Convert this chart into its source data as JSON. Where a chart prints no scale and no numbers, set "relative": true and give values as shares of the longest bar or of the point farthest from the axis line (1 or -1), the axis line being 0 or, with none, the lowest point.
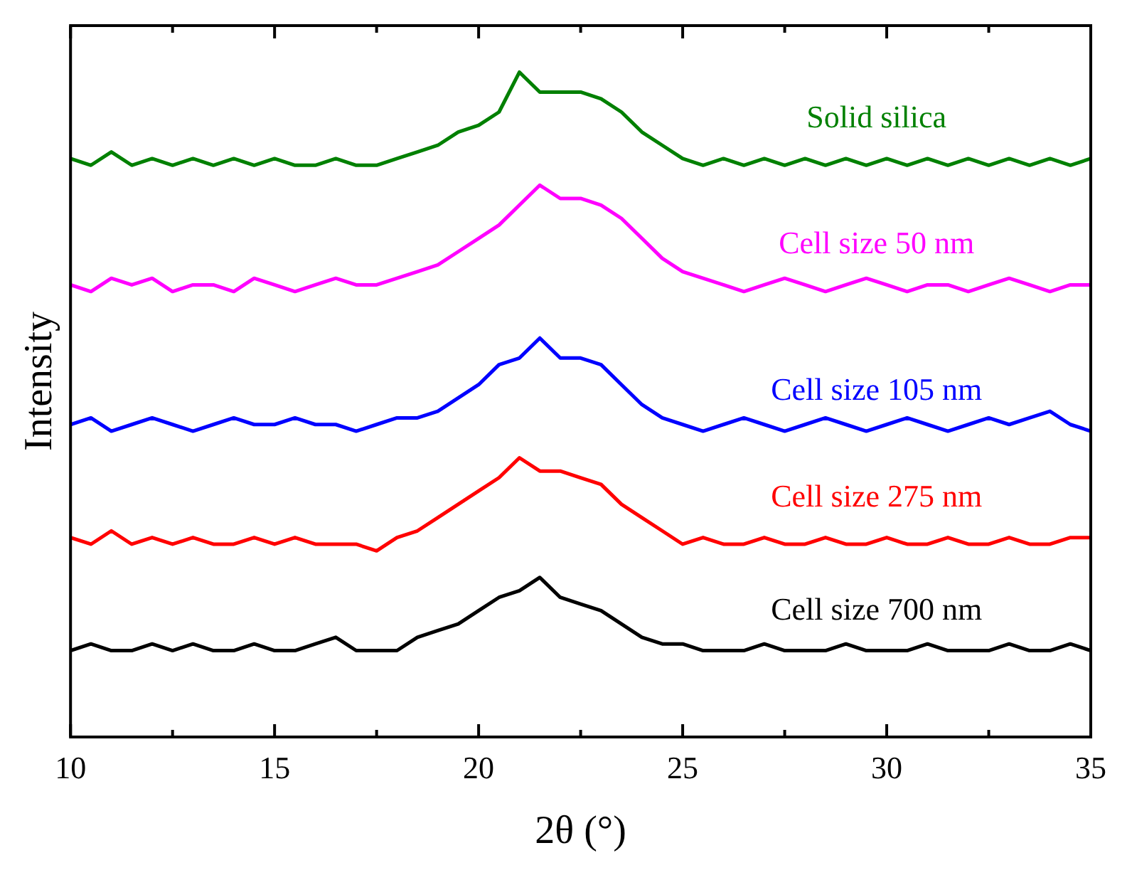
{
  "chart_data": {
    "type": "line",
    "relative": true,
    "xlabel": "2θ (°)",
    "ylabel": "Intensity",
    "legend": false,
    "grid": false,
    "marker": "none",
    "line_style": "solid",
    "x": [
      10,
      10.5,
      11,
      11.5,
      12,
      12.5,
      13,
      13.5,
      14,
      14.5,
      15,
      15.5,
      16,
      16.5,
      17,
      17.5,
      18,
      18.5,
      19,
      19.5,
      20,
      20.5,
      21,
      21.5,
      22,
      22.5,
      23,
      23.5,
      24,
      24.5,
      25,
      25.5,
      26,
      26.5,
      27,
      27.5,
      28,
      28.5,
      29,
      29.5,
      30,
      30.5,
      31,
      31.5,
      32,
      32.5,
      33,
      33.5,
      34,
      34.5,
      35
    ],
    "xlim": [
      10,
      35
    ],
    "xticks": [
      10,
      {
        "value": 12.5,
        "label": null
      },
      15,
      {
        "value": 17.5,
        "label": null
      },
      20,
      {
        "value": 22.5,
        "label": null
      },
      25,
      {
        "value": 27.5,
        "label": null
      },
      30,
      {
        "value": 32.5,
        "label": null
      },
      35
    ],
    "series": [
      {
        "name": "Solid silica",
        "color": "#008000",
        "values": [
          0.87,
          0.86,
          0.88,
          0.86,
          0.87,
          0.86,
          0.87,
          0.86,
          0.87,
          0.86,
          0.87,
          0.86,
          0.86,
          0.87,
          0.86,
          0.86,
          0.87,
          0.88,
          0.89,
          0.91,
          0.92,
          0.94,
          1.0,
          0.97,
          0.97,
          0.97,
          0.96,
          0.94,
          0.91,
          0.89,
          0.87,
          0.86,
          0.87,
          0.86,
          0.87,
          0.86,
          0.87,
          0.86,
          0.87,
          0.86,
          0.87,
          0.86,
          0.87,
          0.86,
          0.87,
          0.86,
          0.87,
          0.86,
          0.87,
          0.86,
          0.87
        ]
      },
      {
        "name": "Cell size 50 nm",
        "color": "#ff00ff",
        "values": [
          0.68,
          0.67,
          0.69,
          0.68,
          0.69,
          0.67,
          0.68,
          0.68,
          0.67,
          0.69,
          0.68,
          0.67,
          0.68,
          0.69,
          0.68,
          0.68,
          0.69,
          0.7,
          0.71,
          0.73,
          0.75,
          0.77,
          0.8,
          0.83,
          0.81,
          0.81,
          0.8,
          0.78,
          0.75,
          0.72,
          0.7,
          0.69,
          0.68,
          0.67,
          0.68,
          0.69,
          0.68,
          0.67,
          0.68,
          0.69,
          0.68,
          0.67,
          0.68,
          0.68,
          0.67,
          0.68,
          0.69,
          0.68,
          0.67,
          0.68,
          0.68
        ]
      },
      {
        "name": "Cell size 105 nm",
        "color": "#0000ff",
        "values": [
          0.47,
          0.48,
          0.46,
          0.47,
          0.48,
          0.47,
          0.46,
          0.47,
          0.48,
          0.47,
          0.47,
          0.48,
          0.47,
          0.47,
          0.46,
          0.47,
          0.48,
          0.48,
          0.49,
          0.51,
          0.53,
          0.56,
          0.57,
          0.6,
          0.57,
          0.57,
          0.56,
          0.53,
          0.5,
          0.48,
          0.47,
          0.46,
          0.47,
          0.48,
          0.47,
          0.46,
          0.47,
          0.48,
          0.47,
          0.46,
          0.47,
          0.48,
          0.47,
          0.46,
          0.47,
          0.48,
          0.47,
          0.48,
          0.49,
          0.47,
          0.46
        ]
      },
      {
        "name": "Cell size 275 nm",
        "color": "#ff0000",
        "values": [
          0.3,
          0.29,
          0.31,
          0.29,
          0.3,
          0.29,
          0.3,
          0.29,
          0.29,
          0.3,
          0.29,
          0.3,
          0.29,
          0.29,
          0.29,
          0.28,
          0.3,
          0.31,
          0.33,
          0.35,
          0.37,
          0.39,
          0.42,
          0.4,
          0.4,
          0.39,
          0.38,
          0.35,
          0.33,
          0.31,
          0.29,
          0.3,
          0.29,
          0.29,
          0.3,
          0.29,
          0.29,
          0.3,
          0.29,
          0.29,
          0.3,
          0.29,
          0.29,
          0.3,
          0.29,
          0.29,
          0.3,
          0.29,
          0.29,
          0.3,
          0.3
        ]
      },
      {
        "name": "Cell size 700 nm",
        "color": "#000000",
        "values": [
          0.13,
          0.14,
          0.13,
          0.13,
          0.14,
          0.13,
          0.14,
          0.13,
          0.13,
          0.14,
          0.13,
          0.13,
          0.14,
          0.15,
          0.13,
          0.13,
          0.13,
          0.15,
          0.16,
          0.17,
          0.19,
          0.21,
          0.22,
          0.24,
          0.21,
          0.2,
          0.19,
          0.17,
          0.15,
          0.14,
          0.14,
          0.13,
          0.13,
          0.13,
          0.14,
          0.13,
          0.13,
          0.13,
          0.14,
          0.13,
          0.13,
          0.13,
          0.14,
          0.13,
          0.13,
          0.13,
          0.14,
          0.13,
          0.13,
          0.14,
          0.13
        ]
      }
    ]
  }
}
